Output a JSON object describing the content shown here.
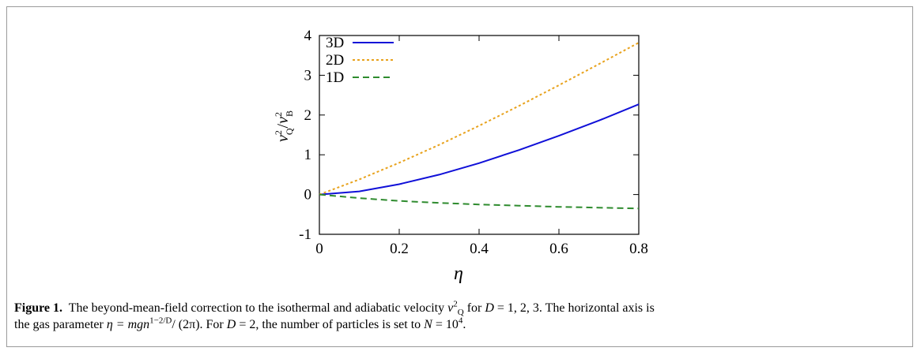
{
  "chart_data": {
    "type": "line",
    "title": "",
    "xlabel": "η",
    "ylabel": "v_Q^2 / v_B^2",
    "xlim": [
      0,
      0.8
    ],
    "ylim": [
      -1,
      4
    ],
    "x_ticks": [
      0,
      0.2,
      0.4,
      0.6,
      0.8
    ],
    "x_tick_labels": [
      "0",
      "0.2",
      "0.4",
      "0.6",
      "0.8"
    ],
    "y_ticks": [
      -1,
      0,
      1,
      2,
      3,
      4
    ],
    "y_tick_labels": [
      "-1",
      "0",
      "1",
      "2",
      "3",
      "4"
    ],
    "grid": false,
    "legend_position": "top-left",
    "x": [
      0,
      0.1,
      0.2,
      0.3,
      0.4,
      0.5,
      0.6,
      0.7,
      0.8
    ],
    "series": [
      {
        "name": "3D",
        "color": "#1010d8",
        "style": "solid",
        "values": [
          0,
          0.08,
          0.26,
          0.5,
          0.79,
          1.12,
          1.48,
          1.86,
          2.27
        ]
      },
      {
        "name": "2D",
        "color": "#e8a21c",
        "style": "dotted",
        "values": [
          0,
          0.38,
          0.8,
          1.25,
          1.73,
          2.23,
          2.75,
          3.28,
          3.82
        ]
      },
      {
        "name": "1D",
        "color": "#2e8b2e",
        "style": "dashed",
        "values": [
          0,
          -0.09,
          -0.16,
          -0.21,
          -0.25,
          -0.28,
          -0.31,
          -0.33,
          -0.35
        ]
      }
    ]
  },
  "caption": {
    "figure_label": "Figure 1.",
    "line1_text_a": "The beyond-mean-field correction to the isothermal and adiabatic velocity",
    "line1_text_b": "for",
    "line1_dims": "= 1, 2, 3. The horizontal axis is",
    "line2_text_a": "the gas parameter",
    "line2_eta_eq": "η = mgn",
    "line2_exponent": "1−2/D",
    "line2_denominator": "/ (2π). For",
    "line2_d_value": "= 2, the number of particles is set to",
    "line2_n_value": "= 10",
    "line2_n_exponent": "4",
    "line2_end": ".",
    "symbol_v": "v",
    "symbol_v_sup": "2",
    "symbol_v_sub": "Q",
    "symbol_D": "D",
    "symbol_N": "N"
  }
}
